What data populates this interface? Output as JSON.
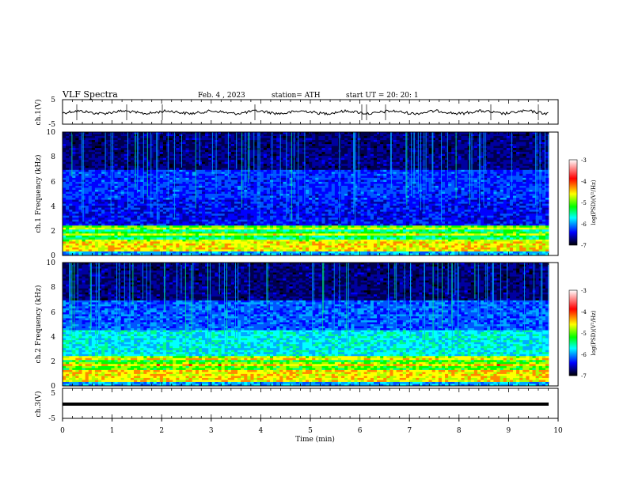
{
  "header": {
    "title": "VLF Spectra",
    "date": "Feb. 4 , 2023",
    "station": "station= ATH",
    "start": "start UT = 20: 20: 1"
  },
  "chart_data": [
    {
      "type": "line",
      "panel": "ch1-waveform",
      "ylabel": "ch.1(V)",
      "ylim": [
        -5,
        5
      ],
      "yticks": [
        "5",
        "-5"
      ],
      "xlim": [
        0,
        10
      ],
      "series": [
        {
          "values_approx_level": 0
        }
      ]
    },
    {
      "type": "heatmap",
      "panel": "ch1-spectrogram",
      "ylabel": "ch.1 Frequency (kHz)",
      "ylim": [
        0,
        10
      ],
      "yticks": [
        "0",
        "2",
        "4",
        "6",
        "8",
        "10"
      ],
      "xlim": [
        0,
        9.8
      ],
      "colorbar": {
        "label": "log(PSD)(V²/Hz)",
        "range": [
          -7,
          -3
        ],
        "ticks": [
          "-3",
          "-4",
          "-5",
          "-6",
          "-7"
        ]
      }
    },
    {
      "type": "heatmap",
      "panel": "ch2-spectrogram",
      "ylabel": "ch.2 Frequency (kHz)",
      "ylim": [
        0,
        10
      ],
      "yticks": [
        "0",
        "2",
        "4",
        "6",
        "8",
        "10"
      ],
      "xlim": [
        0,
        9.8
      ],
      "colorbar": {
        "label": "log(PSD)(V²/Hz)",
        "range": [
          -7,
          -3
        ],
        "ticks": [
          "-3",
          "-4",
          "-5",
          "-6",
          "-7"
        ]
      }
    },
    {
      "type": "line",
      "panel": "ch3-waveform",
      "ylabel": "ch.3(V)",
      "ylim": [
        -5,
        5
      ],
      "yticks": [
        "5",
        "-5"
      ],
      "xlim": [
        0,
        10
      ],
      "series": [
        {
          "values_approx_level": 0
        }
      ]
    }
  ],
  "xaxis": {
    "label": "Time (min)",
    "ticks": [
      "0",
      "1",
      "2",
      "3",
      "4",
      "5",
      "6",
      "7",
      "8",
      "9",
      "10"
    ]
  },
  "colors": {
    "colormap": [
      "#ffffff",
      "#ff0000",
      "#ffff00",
      "#00ff00",
      "#00ffff",
      "#0000ff",
      "#000000"
    ]
  }
}
